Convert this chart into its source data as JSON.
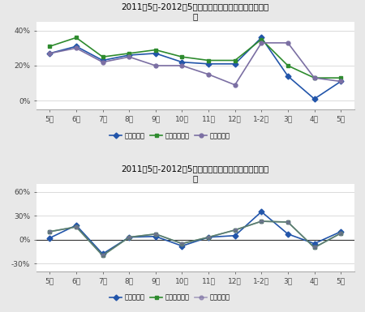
{
  "title1": "2011年5月-2012年5月石化通用行业产销同比增长趋势",
  "subtitle1": "图",
  "title2": "2011年5月-2012年5月石化通用行业产销环比增长趋势",
  "subtitle2": "图",
  "x_labels": [
    "5月",
    "6月",
    "7月",
    "8月",
    "9月",
    "10月",
    "11月",
    "12月",
    "1-2月",
    "3月",
    "4月",
    "5月"
  ],
  "chart1": {
    "series1_name": "工业总产值",
    "series1": [
      27,
      31,
      23,
      26,
      27,
      22,
      21,
      21,
      36,
      14,
      1,
      11
    ],
    "series2_name": "工业销售产值",
    "series2": [
      31,
      36,
      25,
      27,
      29,
      25,
      23,
      23,
      35,
      20,
      13,
      13
    ],
    "series3_name": "出口交货值",
    "series3": [
      27,
      30,
      22,
      25,
      20,
      20,
      15,
      9,
      33,
      33,
      13,
      11
    ],
    "ylim": [
      -5,
      45
    ],
    "yticks": [
      0,
      20,
      40
    ],
    "ytick_labels": [
      "0%",
      "20%",
      "40%"
    ]
  },
  "chart2": {
    "series1_name": "工业总产值",
    "series1": [
      2,
      18,
      -18,
      3,
      4,
      -8,
      3,
      5,
      35,
      7,
      -5,
      10
    ],
    "series2_name": "工业销售产值",
    "series2": [
      10,
      16,
      -20,
      3,
      7,
      -5,
      3,
      12,
      23,
      22,
      -10,
      8
    ],
    "series3_name": "出口交货值",
    "series3": [
      10,
      16,
      -20,
      3,
      7,
      -5,
      3,
      12,
      23,
      22,
      -10,
      8
    ],
    "ylim": [
      -40,
      70
    ],
    "yticks": [
      -30,
      0,
      30,
      60
    ],
    "ytick_labels": [
      "-30%",
      "0%",
      "30%",
      "60%"
    ]
  },
  "color_blue": "#2255aa",
  "color_green": "#2e8b2e",
  "color_purple": "#7b6fa3",
  "line_width": 1.2,
  "marker_size": 3.5,
  "fig_bg": "#e8e8e8",
  "plot_bg": "#ffffff"
}
